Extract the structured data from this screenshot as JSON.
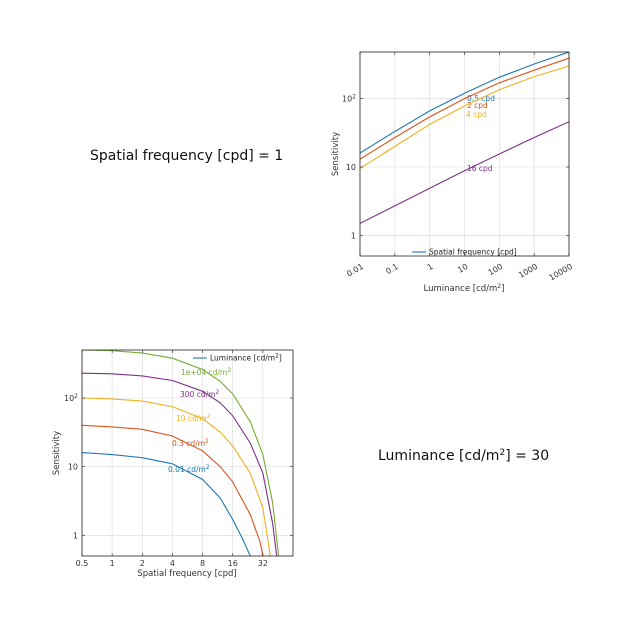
{
  "panels": {
    "top_left_text": {
      "prefix": "Spatial frequency [cpd] = ",
      "value": "1"
    },
    "bottom_right_text": {
      "prefix": "Luminance [cd/m",
      "sup": "2",
      "suffix": "] = ",
      "value": "30"
    }
  },
  "chart_data": [
    {
      "type": "line",
      "xscale": "log",
      "yscale": "log",
      "xlabel": "Luminance [cd/m2]",
      "ylabel": "Sensitivity",
      "xlim": [
        0.01,
        10000
      ],
      "ylim": [
        0.5,
        480
      ],
      "xticks": [
        0.01,
        0.1,
        1,
        10,
        100,
        1000,
        10000
      ],
      "xtick_labels": [
        "0.01",
        "0.1",
        "1",
        "10",
        "100",
        "1000",
        "10000"
      ],
      "yticks": [
        1,
        10,
        100
      ],
      "ytick_labels": [
        "1",
        "10",
        "10^2"
      ],
      "grid": true,
      "legend": {
        "entries": [
          "Spatial frequency [cpd]"
        ],
        "placement": "bottom-center",
        "color": "#1f77b4"
      },
      "series": [
        {
          "name": "0.5 cpd",
          "color": "#1f77b4",
          "x": [
            0.01,
            0.1,
            1,
            10,
            100,
            1000,
            10000
          ],
          "y": [
            16,
            33,
            66,
            120,
            205,
            320,
            480
          ]
        },
        {
          "name": "2 cpd",
          "color": "#d95319",
          "x": [
            0.01,
            0.1,
            1,
            10,
            100,
            1000,
            10000
          ],
          "y": [
            13,
            27,
            54,
            100,
            170,
            260,
            390
          ]
        },
        {
          "name": "4 cpd",
          "color": "#edb120",
          "x": [
            0.01,
            0.1,
            1,
            10,
            100,
            1000,
            10000
          ],
          "y": [
            9.5,
            20,
            42,
            78,
            135,
            210,
            300
          ]
        },
        {
          "name": "16 cpd",
          "color": "#7e2f8e",
          "x": [
            0.01,
            0.1,
            1,
            10,
            100,
            1000,
            10000
          ],
          "y": [
            1.5,
            2.7,
            4.9,
            8.8,
            15.5,
            27,
            46
          ]
        }
      ]
    },
    {
      "type": "line",
      "xscale": "log",
      "yscale": "log",
      "xlabel": "Spatial frequency [cpd]",
      "ylabel": "Sensitivity",
      "xlim": [
        0.5,
        64
      ],
      "ylim": [
        0.5,
        500
      ],
      "xticks": [
        0.5,
        1,
        2,
        4,
        8,
        16,
        32
      ],
      "xtick_labels": [
        "0.5",
        "1",
        "2",
        "4",
        "8",
        "16",
        "32"
      ],
      "yticks": [
        1,
        10,
        100
      ],
      "ytick_labels": [
        "1",
        "10",
        "10^2"
      ],
      "grid": true,
      "legend": {
        "entries": [
          "Luminance [cd/m2]"
        ],
        "placement": "top-right",
        "color": "#1f77b4"
      },
      "series": [
        {
          "name": "0.01 cd/m2",
          "color": "#1f77b4",
          "x": [
            0.5,
            1,
            2,
            4,
            8,
            12,
            16,
            20,
            24
          ],
          "y": [
            16,
            15,
            13.5,
            11,
            6.5,
            3.5,
            1.7,
            0.9,
            0.5
          ]
        },
        {
          "name": "0.3 cd/m2",
          "color": "#d95319",
          "x": [
            0.5,
            1,
            2,
            4,
            8,
            12,
            16,
            24,
            30,
            32
          ],
          "y": [
            40,
            38,
            35,
            28,
            17,
            10,
            6,
            2,
            0.8,
            0.5
          ]
        },
        {
          "name": "10 cd/m2",
          "color": "#edb120",
          "x": [
            0.5,
            1,
            2,
            4,
            8,
            12,
            16,
            24,
            32,
            38
          ],
          "y": [
            100,
            97,
            90,
            75,
            50,
            32,
            20,
            8,
            2.5,
            0.5
          ]
        },
        {
          "name": "300 cd/m2",
          "color": "#7e2f8e",
          "x": [
            0.5,
            1,
            2,
            4,
            8,
            12,
            16,
            24,
            32,
            40,
            44
          ],
          "y": [
            230,
            225,
            210,
            180,
            125,
            85,
            55,
            22,
            8,
            1.5,
            0.5
          ]
        },
        {
          "name": "1e+04 cd/m2",
          "color": "#77ac30",
          "x": [
            0.5,
            1,
            2,
            4,
            8,
            12,
            16,
            24,
            32,
            40,
            46
          ],
          "y": [
            500,
            490,
            450,
            380,
            260,
            175,
            115,
            45,
            15,
            3,
            0.5
          ]
        }
      ]
    }
  ]
}
